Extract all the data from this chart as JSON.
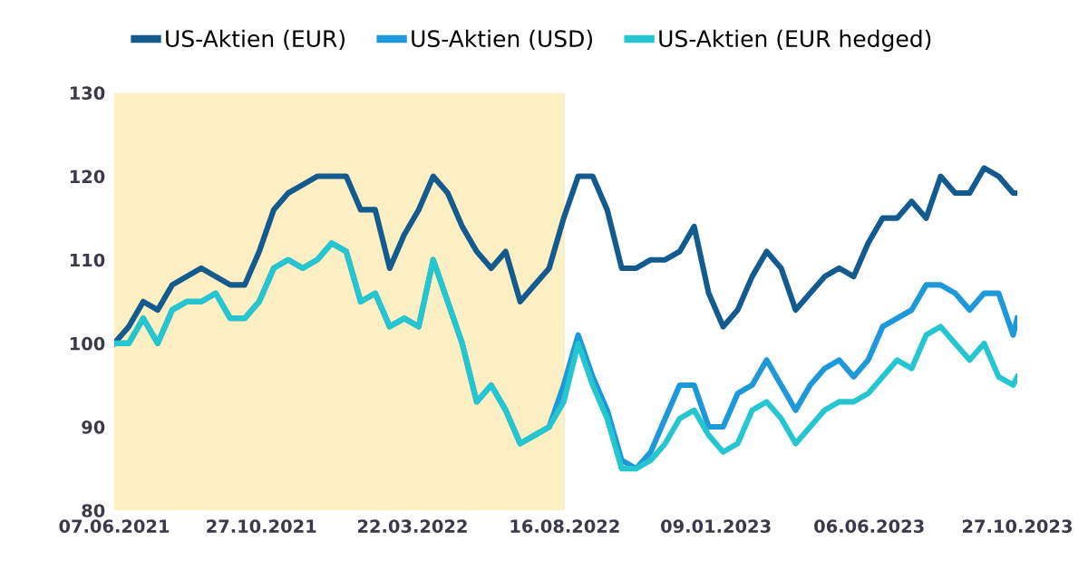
{
  "chart_data": {
    "type": "line",
    "x": [
      "2021-06-07",
      "2021-06-21",
      "2021-07-05",
      "2021-07-19",
      "2021-08-02",
      "2021-08-16",
      "2021-08-30",
      "2021-09-13",
      "2021-09-27",
      "2021-10-11",
      "2021-10-25",
      "2021-11-08",
      "2021-11-22",
      "2021-12-06",
      "2021-12-20",
      "2022-01-03",
      "2022-01-17",
      "2022-01-31",
      "2022-02-14",
      "2022-02-28",
      "2022-03-14",
      "2022-03-28",
      "2022-04-11",
      "2022-04-25",
      "2022-05-09",
      "2022-05-23",
      "2022-06-06",
      "2022-06-20",
      "2022-07-04",
      "2022-07-18",
      "2022-08-01",
      "2022-08-15",
      "2022-08-29",
      "2022-09-12",
      "2022-09-26",
      "2022-10-10",
      "2022-10-24",
      "2022-11-07",
      "2022-11-21",
      "2022-12-05",
      "2022-12-19",
      "2023-01-02",
      "2023-01-16",
      "2023-01-30",
      "2023-02-13",
      "2023-02-27",
      "2023-03-13",
      "2023-03-27",
      "2023-04-10",
      "2023-04-24",
      "2023-05-08",
      "2023-05-22",
      "2023-06-05",
      "2023-06-19",
      "2023-07-03",
      "2023-07-17",
      "2023-07-31",
      "2023-08-14",
      "2023-08-28",
      "2023-09-11",
      "2023-09-25",
      "2023-10-09",
      "2023-10-23",
      "2023-10-27"
    ],
    "series": [
      {
        "name": "US-Aktien (EUR)",
        "color": "#135b8e",
        "values": [
          100,
          102,
          105,
          104,
          107,
          108,
          109,
          108,
          107,
          107,
          111,
          116,
          118,
          119,
          120,
          120,
          120,
          116,
          116,
          109,
          113,
          116,
          120,
          118,
          114,
          111,
          109,
          111,
          105,
          107,
          109,
          115,
          120,
          120,
          116,
          109,
          109,
          110,
          110,
          111,
          114,
          106,
          102,
          104,
          108,
          111,
          109,
          104,
          106,
          108,
          109,
          108,
          112,
          115,
          115,
          117,
          115,
          120,
          118,
          118,
          121,
          120,
          118,
          118
        ]
      },
      {
        "name": "US-Aktien (USD)",
        "color": "#1d98d8",
        "values": [
          100,
          100,
          103,
          100,
          104,
          105,
          105,
          106,
          103,
          103,
          105,
          109,
          110,
          109,
          110,
          112,
          111,
          105,
          106,
          102,
          103,
          102,
          110,
          105,
          100,
          93,
          95,
          92,
          88,
          89,
          90,
          95,
          101,
          96,
          92,
          86,
          85,
          87,
          91,
          95,
          95,
          90,
          90,
          94,
          95,
          98,
          95,
          92,
          95,
          97,
          98,
          96,
          98,
          102,
          103,
          104,
          107,
          107,
          106,
          104,
          106,
          106,
          101,
          103
        ]
      },
      {
        "name": "US-Aktien (EUR hedged)",
        "color": "#25c6cf",
        "values": [
          100,
          100,
          103,
          100,
          104,
          105,
          105,
          106,
          103,
          103,
          105,
          109,
          110,
          109,
          110,
          112,
          111,
          105,
          106,
          102,
          103,
          102,
          110,
          105,
          100,
          93,
          95,
          92,
          88,
          89,
          90,
          93,
          100,
          95,
          91,
          85,
          85,
          86,
          88,
          91,
          92,
          89,
          87,
          88,
          92,
          93,
          91,
          88,
          90,
          92,
          93,
          93,
          94,
          96,
          98,
          97,
          101,
          102,
          100,
          98,
          100,
          96,
          95,
          96
        ]
      }
    ],
    "xlim": [
      "2021-06-07",
      "2023-10-27"
    ],
    "xticks": [
      {
        "value": "2021-06-07",
        "label": "07.06.2021"
      },
      {
        "value": "2021-10-27",
        "label": "27.10.2021"
      },
      {
        "value": "2022-03-22",
        "label": "22.03.2022"
      },
      {
        "value": "2022-08-16",
        "label": "16.08.2022"
      },
      {
        "value": "2023-01-09",
        "label": "09.01.2023"
      },
      {
        "value": "2023-06-06",
        "label": "06.06.2023"
      },
      {
        "value": "2023-10-27",
        "label": "27.10.2023"
      }
    ],
    "ylim": [
      80,
      130
    ],
    "yticks": [
      80,
      90,
      100,
      110,
      120,
      130
    ],
    "bands": [
      {
        "axis": "x",
        "from": "2021-06-07",
        "to": "2022-08-16",
        "color": "#fcefc4"
      }
    ],
    "grid": false,
    "legend": "top left",
    "marker": "none",
    "line_style": "solid"
  }
}
